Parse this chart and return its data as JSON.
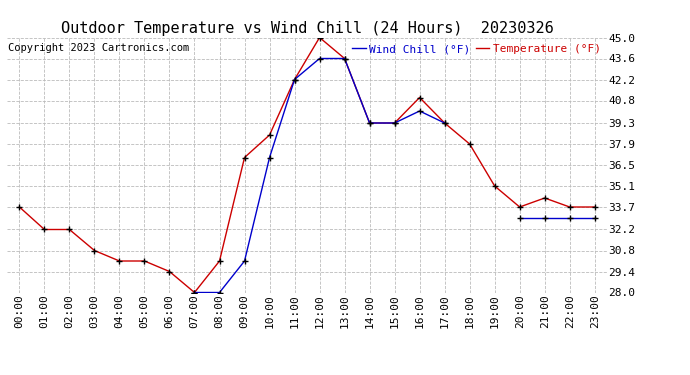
{
  "title": "Outdoor Temperature vs Wind Chill (24 Hours)  20230326",
  "copyright": "Copyright 2023 Cartronics.com",
  "legend_wind_chill": "Wind Chill (°F)",
  "legend_temperature": "Temperature (°F)",
  "x_labels": [
    "00:00",
    "01:00",
    "02:00",
    "03:00",
    "04:00",
    "05:00",
    "06:00",
    "07:00",
    "08:00",
    "09:00",
    "10:00",
    "11:00",
    "12:00",
    "13:00",
    "14:00",
    "15:00",
    "16:00",
    "17:00",
    "18:00",
    "19:00",
    "20:00",
    "21:00",
    "22:00",
    "23:00"
  ],
  "temperature": [
    33.7,
    32.2,
    32.2,
    30.8,
    30.1,
    30.1,
    29.4,
    28.0,
    30.1,
    37.0,
    38.5,
    42.2,
    45.0,
    43.6,
    39.3,
    39.3,
    41.0,
    39.3,
    37.9,
    35.1,
    33.7,
    34.3,
    33.7,
    33.7
  ],
  "wind_chill": [
    null,
    null,
    null,
    null,
    null,
    null,
    null,
    28.0,
    28.0,
    30.1,
    37.0,
    42.2,
    43.6,
    43.6,
    39.3,
    39.3,
    40.1,
    39.3,
    null,
    null,
    33.0,
    33.0,
    33.0,
    33.0
  ],
  "ylim": [
    28.0,
    45.0
  ],
  "yticks": [
    28.0,
    29.4,
    30.8,
    32.2,
    33.7,
    35.1,
    36.5,
    37.9,
    39.3,
    40.8,
    42.2,
    43.6,
    45.0
  ],
  "temp_color": "#cc0000",
  "wind_chill_color": "#0000cc",
  "background_color": "#ffffff",
  "grid_color": "#bbbbbb",
  "title_fontsize": 11,
  "tick_fontsize": 8,
  "copyright_fontsize": 7.5
}
